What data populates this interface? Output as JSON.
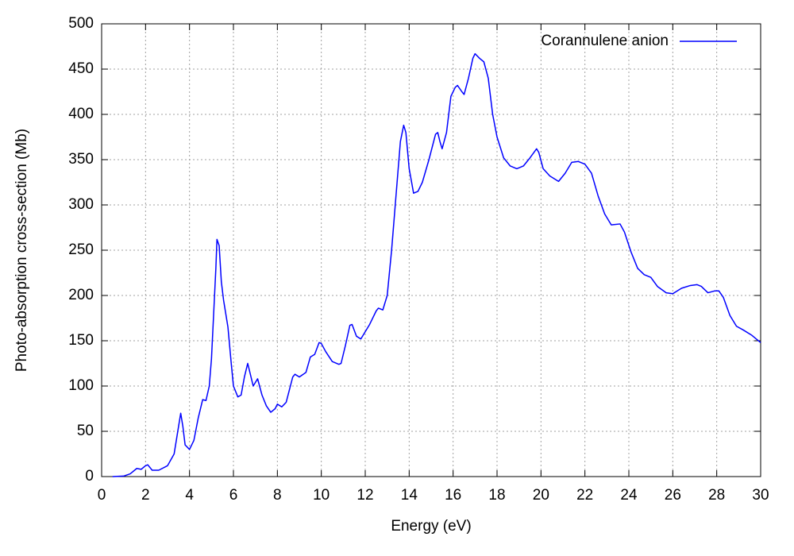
{
  "chart_data": {
    "type": "line",
    "xlabel": "Energy (eV)",
    "ylabel": "Photo-absorption cross-section (Mb)",
    "x": [
      0.5,
      1,
      1.3,
      1.6,
      1.8,
      2.0,
      2.1,
      2.3,
      2.6,
      3.0,
      3.3,
      3.5,
      3.6,
      3.7,
      3.8,
      4.0,
      4.2,
      4.4,
      4.6,
      4.75,
      4.9,
      5.0,
      5.1,
      5.2,
      5.25,
      5.35,
      5.45,
      5.55,
      5.75,
      5.9,
      6.0,
      6.2,
      6.35,
      6.5,
      6.65,
      6.75,
      6.9,
      7.1,
      7.3,
      7.5,
      7.7,
      7.9,
      8.0,
      8.2,
      8.4,
      8.7,
      8.8,
      9.0,
      9.3,
      9.5,
      9.7,
      9.9,
      10.0,
      10.2,
      10.5,
      10.8,
      10.9,
      11.1,
      11.3,
      11.4,
      11.6,
      11.8,
      12.0,
      12.2,
      12.5,
      12.6,
      12.8,
      13.0,
      13.2,
      13.4,
      13.6,
      13.75,
      13.85,
      14.0,
      14.2,
      14.4,
      14.6,
      14.9,
      15.2,
      15.3,
      15.4,
      15.5,
      15.7,
      15.9,
      16.1,
      16.2,
      16.4,
      16.5,
      16.7,
      16.9,
      17.0,
      17.2,
      17.4,
      17.6,
      17.8,
      18.0,
      18.3,
      18.6,
      18.9,
      19.2,
      19.5,
      19.8,
      19.9,
      20.1,
      20.4,
      20.8,
      21.1,
      21.4,
      21.7,
      22.0,
      22.3,
      22.6,
      22.9,
      23.2,
      23.6,
      23.8,
      24.1,
      24.4,
      24.7,
      25.0,
      25.3,
      25.7,
      26.0,
      26.4,
      26.8,
      27.1,
      27.3,
      27.6,
      27.9,
      28.1,
      28.3,
      28.6,
      28.9,
      29.2,
      29.6,
      30
    ],
    "series": [
      {
        "name": "Corannulene anion",
        "color": "#0000ff",
        "values": [
          0,
          0.5,
          3,
          9,
          8,
          12,
          13,
          7,
          7,
          12,
          25,
          55,
          70,
          55,
          35,
          30,
          40,
          65,
          85,
          84,
          100,
          130,
          180,
          230,
          262,
          255,
          215,
          195,
          165,
          125,
          100,
          88,
          90,
          110,
          125,
          115,
          100,
          108,
          90,
          78,
          71,
          75,
          80,
          77,
          82,
          110,
          113,
          110,
          115,
          132,
          135,
          148,
          147,
          138,
          127,
          124,
          125,
          145,
          167,
          168,
          155,
          152,
          160,
          168,
          183,
          186,
          184,
          200,
          250,
          310,
          370,
          388,
          380,
          340,
          313,
          315,
          325,
          350,
          378,
          380,
          370,
          362,
          380,
          420,
          430,
          432,
          425,
          422,
          440,
          462,
          467,
          462,
          458,
          440,
          400,
          375,
          352,
          343,
          340,
          343,
          352,
          362,
          358,
          340,
          332,
          326,
          335,
          347,
          348,
          345,
          335,
          310,
          290,
          278,
          279,
          270,
          248,
          230,
          223,
          220,
          210,
          203,
          202,
          208,
          211,
          212,
          210,
          203,
          205,
          205,
          198,
          178,
          166,
          162,
          156,
          148
        ]
      }
    ],
    "xlim": [
      0,
      30
    ],
    "xticks": [
      0,
      2,
      4,
      6,
      8,
      10,
      12,
      14,
      16,
      18,
      20,
      22,
      24,
      26,
      28,
      30
    ],
    "ylim": [
      0,
      500
    ],
    "yticks": [
      0,
      50,
      100,
      150,
      200,
      250,
      300,
      350,
      400,
      450,
      500
    ],
    "grid": true,
    "legend": "top right"
  }
}
